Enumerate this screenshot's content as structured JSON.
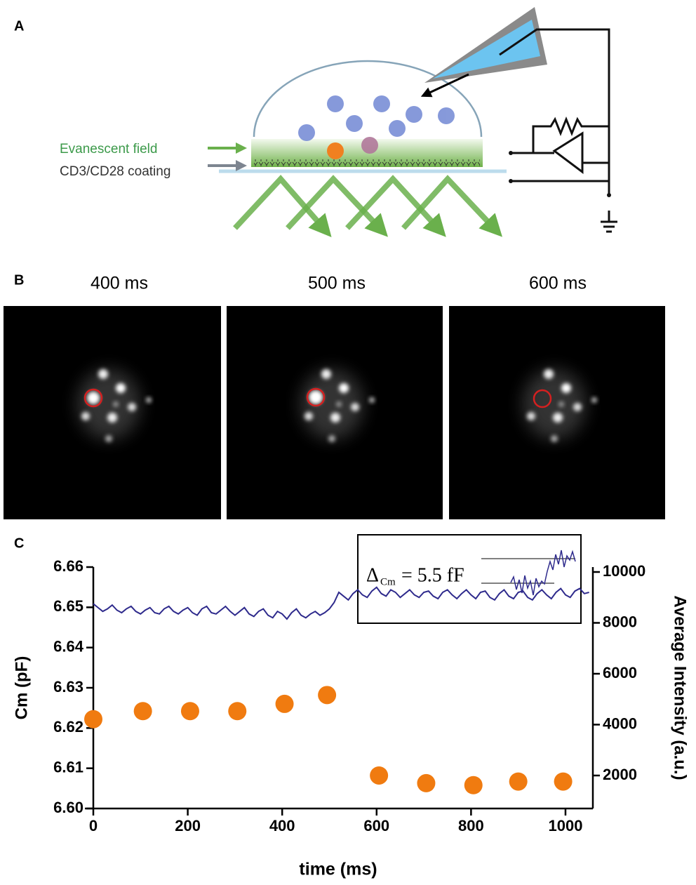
{
  "panels": {
    "a": "A",
    "b": "B",
    "c": "C"
  },
  "diagram": {
    "evanescent": "Evanescent field",
    "coating": "CD3/CD28 coating"
  },
  "frames": [
    "400 ms",
    "500 ms",
    "600 ms"
  ],
  "chart_data": {
    "type": "combo",
    "xlabel": "time (ms)",
    "ylabel": "Cm (pF)",
    "y2label": "Average Intensity (a.u.)",
    "annotation": {
      "symbol": "Δ",
      "subscript": "Cm",
      "text": "= 5.5 fF"
    },
    "xlim": [
      0,
      1058
    ],
    "xticks": [
      0,
      200,
      400,
      600,
      800,
      1000
    ],
    "ylim": [
      6.6,
      6.66
    ],
    "yticks": [
      {
        "value": 6.6,
        "label": "6.60"
      },
      6.61,
      6.62,
      6.63,
      6.64,
      6.65,
      6.66
    ],
    "y2lim": [
      703,
      10193
    ],
    "y2ticks": [
      2000,
      4000,
      6000,
      8000,
      10000
    ],
    "series": [
      {
        "type": "line",
        "axis": "y2",
        "color": "#2e2a8c",
        "x": [
          0,
          10,
          20,
          30,
          40,
          50,
          60,
          70,
          80,
          90,
          100,
          110,
          120,
          130,
          140,
          150,
          160,
          170,
          180,
          190,
          200,
          210,
          220,
          230,
          240,
          250,
          260,
          270,
          280,
          290,
          300,
          310,
          320,
          330,
          340,
          350,
          360,
          370,
          380,
          390,
          400,
          410,
          420,
          430,
          440,
          450,
          460,
          470,
          480,
          490,
          500,
          510,
          520,
          530,
          540,
          550,
          560,
          570,
          580,
          590,
          600,
          610,
          620,
          630,
          640,
          650,
          660,
          670,
          680,
          690,
          700,
          710,
          720,
          730,
          740,
          750,
          760,
          770,
          780,
          790,
          800,
          810,
          820,
          830,
          840,
          850,
          860,
          870,
          880,
          890,
          900,
          910,
          920,
          930,
          940,
          950,
          960,
          970,
          980,
          990,
          1000,
          1010,
          1020,
          1030,
          1040,
          1050
        ],
        "values": [
          8750,
          8600,
          8450,
          8550,
          8700,
          8500,
          8400,
          8550,
          8650,
          8450,
          8350,
          8500,
          8600,
          8400,
          8350,
          8550,
          8650,
          8450,
          8350,
          8500,
          8600,
          8400,
          8300,
          8550,
          8650,
          8400,
          8350,
          8500,
          8650,
          8450,
          8300,
          8450,
          8600,
          8350,
          8250,
          8450,
          8550,
          8300,
          8200,
          8450,
          8350,
          8150,
          8400,
          8550,
          8300,
          8200,
          8350,
          8450,
          8300,
          8400,
          8550,
          8800,
          9200,
          9050,
          8900,
          9150,
          9300,
          9100,
          9000,
          9250,
          9400,
          9150,
          9050,
          9300,
          9200,
          9000,
          9150,
          9300,
          9100,
          9000,
          9200,
          9250,
          9050,
          8950,
          9200,
          9300,
          9100,
          8950,
          9150,
          9300,
          9100,
          8950,
          9200,
          9250,
          9000,
          8900,
          9150,
          9300,
          9050,
          8950,
          9200,
          9250,
          9000,
          8900,
          9150,
          9300,
          9100,
          8950,
          9200,
          9350,
          9100,
          9000,
          9250,
          9350,
          9150,
          9200
        ]
      },
      {
        "type": "scatter",
        "color": "#f07b10",
        "x": [
          0,
          105,
          205,
          305,
          405,
          495,
          605,
          705,
          805,
          900,
          995
        ],
        "values": [
          6.6222,
          6.6242,
          6.6242,
          6.6242,
          6.626,
          6.6282,
          6.6082,
          6.6063,
          6.6058,
          6.6067,
          6.6067
        ]
      }
    ]
  }
}
